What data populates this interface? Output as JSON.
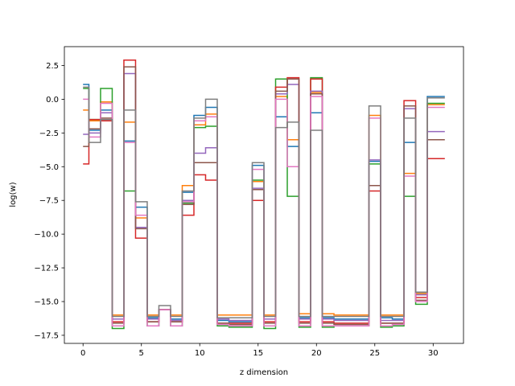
{
  "chart_data": {
    "type": "line",
    "title": "",
    "xlabel": "z dimension",
    "ylabel": "log(w)",
    "xlim": [
      -1.6,
      32.6
    ],
    "ylim": [
      -18.1,
      3.9
    ],
    "xticks": [
      0,
      5,
      10,
      15,
      20,
      25,
      30
    ],
    "yticks": [
      2.5,
      0.0,
      -2.5,
      -5.0,
      -7.5,
      -10.0,
      -12.5,
      -15.0,
      -17.5
    ],
    "ytick_labels": [
      "2.5",
      "0.0",
      "−2.5",
      "−5.0",
      "−7.5",
      "−10.0",
      "−12.5",
      "−15.0",
      "−17.5"
    ],
    "step": "mid",
    "grid": false,
    "legend": "none",
    "x": [
      0,
      1,
      2,
      3,
      4,
      5,
      6,
      7,
      8,
      9,
      10,
      11,
      12,
      13,
      14,
      15,
      16,
      17,
      18,
      19,
      20,
      21,
      22,
      23,
      24,
      25,
      26,
      27,
      28,
      29,
      30,
      31
    ],
    "series": [
      {
        "color": "#1f77b4",
        "values": [
          1.1,
          -2.3,
          -0.8,
          -16.3,
          -3.1,
          -8.0,
          -16.2,
          -15.6,
          -16.3,
          -6.9,
          -1.2,
          -0.6,
          -16.4,
          -16.5,
          -16.5,
          -4.9,
          -16.3,
          -1.3,
          -3.5,
          -16.2,
          -1.0,
          -16.2,
          -16.3,
          -16.3,
          -16.3,
          -4.6,
          -16.2,
          -16.3,
          -3.2,
          -14.4,
          0.2,
          0.2
        ]
      },
      {
        "color": "#ff7f0e",
        "values": [
          -0.8,
          -1.6,
          -0.2,
          -16.0,
          -1.7,
          -8.8,
          -16.0,
          -15.6,
          -16.0,
          -6.4,
          -1.9,
          -1.1,
          -16.0,
          -16.0,
          -16.0,
          -6.1,
          -16.0,
          0.2,
          -3.0,
          -15.9,
          0.5,
          -15.9,
          -16.0,
          -16.0,
          -16.0,
          -1.2,
          -16.0,
          -16.0,
          -5.5,
          -14.4,
          -0.4,
          -0.4
        ]
      },
      {
        "color": "#2ca02c",
        "values": [
          0.8,
          -1.5,
          0.8,
          -17.0,
          -6.8,
          -9.5,
          -16.8,
          -15.6,
          -16.8,
          -7.7,
          -2.1,
          -2.0,
          -16.8,
          -16.9,
          -16.9,
          -6.0,
          -17.0,
          1.5,
          -7.2,
          -16.9,
          1.6,
          -16.9,
          -16.8,
          -16.8,
          -16.8,
          -4.8,
          -16.9,
          -16.8,
          -7.2,
          -15.2,
          -0.3,
          -0.3
        ]
      },
      {
        "color": "#d62728",
        "values": [
          -4.8,
          -1.5,
          -1.6,
          -16.5,
          2.9,
          -10.3,
          -16.5,
          -15.6,
          -16.5,
          -8.6,
          -5.6,
          -6.0,
          -16.6,
          -16.6,
          -16.6,
          -7.5,
          -16.5,
          0.9,
          1.6,
          -16.5,
          1.5,
          -16.5,
          -16.6,
          -16.6,
          -16.6,
          -6.8,
          -16.6,
          -16.6,
          -0.1,
          -14.7,
          -4.4,
          -4.4
        ]
      },
      {
        "color": "#9467bd",
        "values": [
          -2.6,
          -2.5,
          -1.0,
          -16.3,
          1.9,
          -9.5,
          -16.3,
          -15.6,
          -16.4,
          -7.5,
          -4.0,
          -3.6,
          -16.3,
          -16.4,
          -16.4,
          -6.6,
          -16.3,
          0.4,
          1.1,
          -16.3,
          0.6,
          -16.3,
          -16.4,
          -16.4,
          -16.4,
          -4.5,
          -16.4,
          -16.4,
          -0.7,
          -14.5,
          -2.4,
          -2.4
        ]
      },
      {
        "color": "#8c564b",
        "values": [
          -3.5,
          -2.2,
          -1.4,
          -16.6,
          2.4,
          -9.6,
          -16.5,
          -15.6,
          -16.5,
          -7.8,
          -4.7,
          -4.7,
          -16.6,
          -16.7,
          -16.7,
          -6.7,
          -16.6,
          0.6,
          1.5,
          -16.6,
          0.4,
          -16.6,
          -16.7,
          -16.7,
          -16.7,
          -6.4,
          -16.6,
          -16.6,
          -0.5,
          -14.9,
          -3.0,
          -3.0
        ]
      },
      {
        "color": "#e377c2",
        "values": [
          0.0,
          -2.8,
          -0.3,
          -16.8,
          -3.2,
          -8.6,
          -16.8,
          -15.6,
          -16.8,
          -7.6,
          -1.6,
          -1.3,
          -16.7,
          -16.8,
          -16.8,
          -5.2,
          -16.8,
          0.0,
          -5.0,
          -16.8,
          0.2,
          -16.8,
          -16.8,
          -16.8,
          -16.8,
          -1.4,
          -16.8,
          -16.7,
          -5.7,
          -15.0,
          -0.6,
          -0.6
        ]
      },
      {
        "color": "#7f7f7f",
        "values": [
          0.9,
          -3.2,
          -1.5,
          -16.1,
          -0.8,
          -7.6,
          -16.1,
          -15.3,
          -16.1,
          -6.8,
          -1.4,
          0.0,
          -16.2,
          -16.2,
          -16.2,
          -4.7,
          -16.1,
          -2.1,
          -1.7,
          -16.1,
          -2.3,
          -16.1,
          -16.1,
          -16.1,
          -16.1,
          -0.5,
          -16.1,
          -16.1,
          -1.4,
          -14.3,
          0.1,
          0.1
        ]
      }
    ]
  }
}
